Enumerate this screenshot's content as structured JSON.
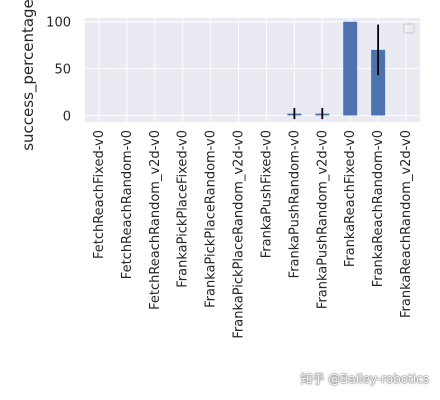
{
  "chart_data": {
    "type": "bar",
    "categories": [
      "FetchReachFixed-v0",
      "FetchReachRandom-v0",
      "FetchReachRandom_v2d-v0",
      "FrankaPickPlaceFixed-v0",
      "FrankaPickPlaceRandom-v0",
      "FrankaPickPlaceRandom_v2d-v0",
      "FrankaPushFixed-v0",
      "FrankaPushRandom-v0",
      "FrankaPushRandom_v2d-v0",
      "FrankaReachFixed-v0",
      "FrankaReachRandom-v0",
      "FrankaReachRandom_v2d-v0"
    ],
    "values": [
      0,
      0,
      0,
      0,
      0,
      0,
      0,
      2,
      2,
      100,
      70,
      0
    ],
    "errors": [
      0,
      0,
      0,
      0,
      0,
      0,
      0,
      6,
      6,
      0,
      27,
      0
    ],
    "ylabel": "success_percentage",
    "xlabel": "",
    "title": "",
    "ylim": [
      -7,
      104
    ],
    "yticks": [
      0,
      50,
      100
    ],
    "grid": true,
    "legend": "top-right",
    "colors": {
      "bar": "#4c72b0",
      "background": "#eaeaf2",
      "grid": "#ffffff",
      "error": "#000000"
    }
  },
  "watermark": "知乎 @Bailey-robotics"
}
